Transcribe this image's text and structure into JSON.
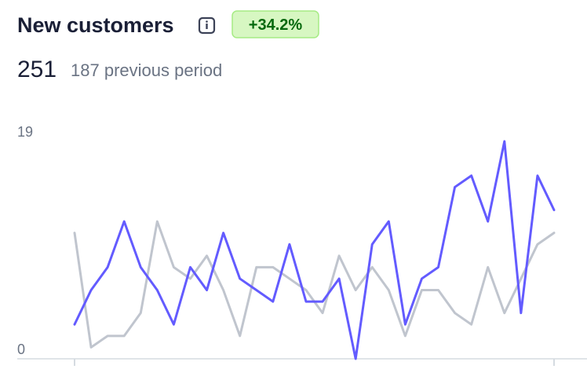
{
  "chart_data": {
    "type": "line",
    "title": "New customers",
    "change": "+34.2%",
    "total": 251,
    "previous_total": 187,
    "previous_label": "previous period",
    "ylim": [
      0,
      19
    ],
    "yticks": [
      0,
      19
    ],
    "series": [
      {
        "color": "#c0c5ce",
        "values": [
          11,
          1,
          2,
          2,
          4,
          12,
          8,
          7,
          9,
          6,
          2,
          8,
          8,
          7,
          6,
          4,
          9,
          6,
          8,
          6,
          2,
          6,
          6,
          4,
          3,
          8,
          4,
          7,
          10,
          11
        ]
      },
      {
        "color": "#635bff",
        "values": [
          3,
          6,
          8,
          12,
          8,
          6,
          3,
          8,
          6,
          11,
          7,
          6,
          5,
          10,
          5,
          5,
          7,
          0,
          10,
          12,
          3,
          7,
          8,
          15,
          16,
          12,
          19,
          4,
          16,
          13
        ]
      }
    ]
  }
}
